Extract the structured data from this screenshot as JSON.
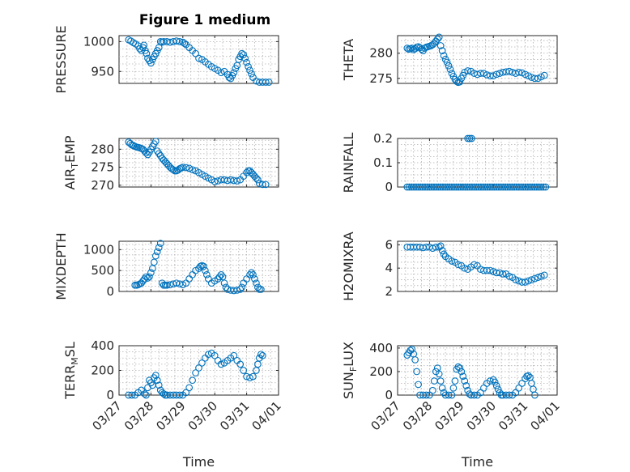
{
  "colors": {
    "marker": "#0072BD",
    "axes": "#262626",
    "grid": "#b0b0b0"
  },
  "chart_data": [
    {
      "type": "scatter",
      "title": "Figure 1 medium",
      "ylabel": "PRESSURE",
      "ylim": [
        930,
        1010
      ],
      "yticks": [
        950,
        1000
      ],
      "ytick_labels": [
        "950",
        "1000"
      ],
      "xlim": [
        0,
        5
      ],
      "xtick_labels": [
        "03/27",
        "03/28",
        "03/29",
        "03/30",
        "03/31",
        "04/01"
      ],
      "show_xticklabels": false,
      "xlabel": "",
      "grid": true,
      "x": [
        0.3,
        0.37,
        0.45,
        0.52,
        0.6,
        0.65,
        0.7,
        0.75,
        0.78,
        0.82,
        0.86,
        0.9,
        0.95,
        1.0,
        1.05,
        1.1,
        1.15,
        1.2,
        1.25,
        1.3,
        1.35,
        1.4,
        1.5,
        1.6,
        1.7,
        1.8,
        1.9,
        2.0,
        2.05,
        2.1,
        2.2,
        2.3,
        2.4,
        2.5,
        2.6,
        2.7,
        2.8,
        2.9,
        3.0,
        3.1,
        3.2,
        3.3,
        3.4,
        3.45,
        3.5,
        3.55,
        3.6,
        3.65,
        3.7,
        3.75,
        3.8,
        3.85,
        3.9,
        3.95,
        4.0,
        4.05,
        4.1,
        4.15,
        4.2,
        4.3,
        4.4,
        4.5,
        4.6,
        4.7
      ],
      "y": [
        1003,
        1001,
        998,
        996,
        993,
        988,
        985,
        990,
        994,
        985,
        980,
        972,
        968,
        964,
        970,
        975,
        980,
        985,
        990,
        1000,
        999,
        1000,
        1000,
        999,
        1000,
        1001,
        1000,
        999,
        997,
        995,
        990,
        985,
        980,
        972,
        970,
        966,
        962,
        958,
        955,
        952,
        948,
        950,
        945,
        940,
        938,
        943,
        948,
        955,
        960,
        970,
        975,
        980,
        978,
        972,
        965,
        958,
        952,
        946,
        940,
        934,
        932,
        932,
        932,
        932
      ]
    },
    {
      "type": "scatter",
      "title": "",
      "ylabel": "THETA",
      "ylim": [
        274,
        283.5
      ],
      "yticks": [
        275,
        280
      ],
      "ytick_labels": [
        "275",
        "280"
      ],
      "xlim": [
        0,
        5
      ],
      "xtick_labels": [
        "03/27",
        "03/28",
        "03/29",
        "03/30",
        "03/31",
        "04/01"
      ],
      "show_xticklabels": false,
      "xlabel": "",
      "grid": true,
      "x": [
        0.3,
        0.35,
        0.4,
        0.45,
        0.5,
        0.55,
        0.6,
        0.65,
        0.7,
        0.75,
        0.8,
        0.85,
        0.9,
        0.95,
        1.0,
        1.05,
        1.1,
        1.15,
        1.2,
        1.25,
        1.3,
        1.35,
        1.4,
        1.45,
        1.5,
        1.55,
        1.6,
        1.65,
        1.7,
        1.75,
        1.8,
        1.85,
        1.9,
        1.95,
        2.0,
        2.05,
        2.1,
        2.2,
        2.3,
        2.4,
        2.5,
        2.6,
        2.7,
        2.8,
        2.9,
        3.0,
        3.1,
        3.2,
        3.3,
        3.4,
        3.5,
        3.6,
        3.7,
        3.8,
        3.9,
        4.0,
        4.1,
        4.2,
        4.3,
        4.4,
        4.5,
        4.6
      ],
      "y": [
        281,
        280.8,
        280.9,
        281,
        280.7,
        280.9,
        281.2,
        281.3,
        281.1,
        280.8,
        280.5,
        281,
        281.2,
        281.3,
        281.4,
        281.5,
        281.7,
        282,
        282.4,
        282.8,
        283.2,
        281.5,
        280.5,
        279.5,
        278.8,
        278.2,
        277.5,
        276.8,
        276,
        275.4,
        274.8,
        274.4,
        274.2,
        274.3,
        275,
        275.6,
        276.2,
        276.5,
        276.4,
        276,
        275.8,
        276,
        276,
        275.7,
        275.5,
        275.5,
        275.8,
        276,
        276.2,
        276.3,
        276.4,
        276.2,
        276,
        276.2,
        276.1,
        275.8,
        275.5,
        275.2,
        275,
        275,
        275.3,
        275.6
      ]
    },
    {
      "type": "scatter",
      "title": "",
      "ylabel": "AIR_TEMP",
      "ylim": [
        269.5,
        283
      ],
      "yticks": [
        270,
        275,
        280
      ],
      "ytick_labels": [
        "270",
        "275",
        "280"
      ],
      "xlim": [
        0,
        5
      ],
      "xtick_labels": [
        "03/27",
        "03/28",
        "03/29",
        "03/30",
        "03/31",
        "04/01"
      ],
      "show_xticklabels": false,
      "xlabel": "",
      "grid": true,
      "x": [
        0.3,
        0.35,
        0.4,
        0.45,
        0.5,
        0.55,
        0.6,
        0.65,
        0.7,
        0.75,
        0.8,
        0.85,
        0.9,
        0.95,
        1.0,
        1.05,
        1.1,
        1.15,
        1.2,
        1.25,
        1.3,
        1.35,
        1.4,
        1.45,
        1.5,
        1.55,
        1.6,
        1.65,
        1.7,
        1.75,
        1.8,
        1.85,
        1.9,
        1.95,
        2.0,
        2.1,
        2.2,
        2.3,
        2.4,
        2.5,
        2.6,
        2.7,
        2.8,
        2.9,
        3.0,
        3.1,
        3.2,
        3.3,
        3.4,
        3.5,
        3.6,
        3.7,
        3.8,
        3.9,
        4.0,
        4.05,
        4.1,
        4.15,
        4.2,
        4.25,
        4.3,
        4.35,
        4.4,
        4.5,
        4.6
      ],
      "y": [
        282,
        281.6,
        281.2,
        281,
        280.8,
        280.6,
        280.5,
        280.4,
        280.2,
        280,
        279.5,
        279,
        278.5,
        279.2,
        280,
        280.8,
        281.5,
        282.2,
        279.5,
        278.8,
        278.2,
        277.5,
        277,
        276.5,
        276,
        275.5,
        275,
        274.6,
        274.3,
        274,
        274,
        274.2,
        274.6,
        274.8,
        275,
        274.9,
        274.7,
        274.3,
        274,
        273.5,
        273,
        272.5,
        272,
        271.5,
        271,
        271.2,
        271.5,
        271.5,
        271.3,
        271.5,
        271.3,
        271.2,
        271.5,
        272.5,
        273.5,
        274,
        274,
        273.5,
        273,
        272.5,
        272,
        271.5,
        270.5,
        270.2,
        270.2
      ]
    },
    {
      "type": "scatter",
      "title": "",
      "ylabel": "RAINFALL",
      "ylim": [
        0,
        0.2
      ],
      "yticks": [
        0,
        0.1,
        0.2
      ],
      "ytick_labels": [
        "0",
        "0.1",
        "0.2"
      ],
      "xlim": [
        0,
        5
      ],
      "xtick_labels": [
        "03/27",
        "03/28",
        "03/29",
        "03/30",
        "03/31",
        "04/01"
      ],
      "show_xticklabels": false,
      "xlabel": "",
      "grid": true,
      "x": [
        0.3,
        0.37,
        0.44,
        0.51,
        0.58,
        0.65,
        0.72,
        0.79,
        0.86,
        0.93,
        1.0,
        1.07,
        1.14,
        1.21,
        1.28,
        1.35,
        1.42,
        1.49,
        1.56,
        1.63,
        1.7,
        1.77,
        1.84,
        1.91,
        1.98,
        2.05,
        2.12,
        2.19,
        2.26,
        2.33,
        2.4,
        2.47,
        2.54,
        2.61,
        2.68,
        2.75,
        2.82,
        2.89,
        2.96,
        3.03,
        3.1,
        3.17,
        3.24,
        3.31,
        3.38,
        3.45,
        3.52,
        3.59,
        3.66,
        3.73,
        3.8,
        3.87,
        3.94,
        4.01,
        4.08,
        4.15,
        4.22,
        4.29,
        4.36,
        4.43,
        4.5,
        4.57,
        4.64,
        2.2,
        2.26,
        2.32
      ],
      "y": [
        0,
        0,
        0,
        0,
        0,
        0,
        0,
        0,
        0,
        0,
        0,
        0,
        0,
        0,
        0,
        0,
        0,
        0,
        0,
        0,
        0,
        0,
        0,
        0,
        0,
        0,
        0,
        0,
        0,
        0,
        0,
        0,
        0,
        0,
        0,
        0,
        0,
        0,
        0,
        0,
        0,
        0,
        0,
        0,
        0,
        0,
        0,
        0,
        0,
        0,
        0,
        0,
        0,
        0,
        0,
        0,
        0,
        0,
        0,
        0,
        0,
        0,
        0,
        0.2,
        0.2,
        0.2
      ]
    },
    {
      "type": "scatter",
      "title": "",
      "ylabel": "MIXDEPTH",
      "ylim": [
        0,
        1200
      ],
      "yticks": [
        0,
        500,
        1000
      ],
      "ytick_labels": [
        "0",
        "500",
        "1000"
      ],
      "xlim": [
        0,
        5
      ],
      "xtick_labels": [
        "03/27",
        "03/28",
        "03/29",
        "03/30",
        "03/31",
        "04/01"
      ],
      "show_xticklabels": false,
      "xlabel": "",
      "grid": true,
      "x": [
        0.5,
        0.55,
        0.6,
        0.65,
        0.7,
        0.75,
        0.8,
        0.85,
        0.9,
        0.95,
        1.0,
        1.05,
        1.1,
        1.15,
        1.2,
        1.25,
        1.3,
        1.35,
        1.4,
        1.45,
        1.5,
        1.6,
        1.7,
        1.8,
        1.9,
        2.0,
        2.1,
        2.2,
        2.3,
        2.4,
        2.5,
        2.55,
        2.6,
        2.65,
        2.7,
        2.75,
        2.8,
        2.9,
        3.0,
        3.1,
        3.15,
        3.2,
        3.25,
        3.3,
        3.35,
        3.4,
        3.5,
        3.6,
        3.7,
        3.8,
        3.85,
        3.9,
        4.0,
        4.1,
        4.15,
        4.2,
        4.25,
        4.3,
        4.35,
        4.4,
        4.45
      ],
      "y": [
        150,
        150,
        160,
        180,
        200,
        250,
        300,
        350,
        320,
        350,
        450,
        550,
        700,
        850,
        950,
        1050,
        1150,
        200,
        150,
        150,
        150,
        160,
        180,
        200,
        180,
        160,
        200,
        300,
        400,
        500,
        550,
        600,
        620,
        600,
        500,
        400,
        300,
        200,
        250,
        300,
        350,
        400,
        350,
        200,
        100,
        50,
        30,
        20,
        30,
        50,
        100,
        200,
        300,
        400,
        450,
        400,
        300,
        200,
        100,
        50,
        50
      ]
    },
    {
      "type": "scatter",
      "title": "",
      "ylabel": "H2OMIXRA",
      "ylim": [
        2,
        6.3
      ],
      "yticks": [
        2,
        4,
        6
      ],
      "ytick_labels": [
        "2",
        "4",
        "6"
      ],
      "xlim": [
        0,
        5
      ],
      "xtick_labels": [
        "03/27",
        "03/28",
        "03/29",
        "03/30",
        "03/31",
        "04/01"
      ],
      "show_xticklabels": false,
      "xlabel": "",
      "grid": true,
      "x": [
        0.3,
        0.4,
        0.5,
        0.6,
        0.7,
        0.8,
        0.9,
        1.0,
        1.1,
        1.2,
        1.3,
        1.35,
        1.4,
        1.45,
        1.5,
        1.6,
        1.7,
        1.8,
        1.9,
        2.0,
        2.1,
        2.2,
        2.3,
        2.4,
        2.5,
        2.6,
        2.7,
        2.8,
        2.9,
        3.0,
        3.1,
        3.2,
        3.3,
        3.4,
        3.5,
        3.6,
        3.7,
        3.8,
        3.9,
        4.0,
        4.1,
        4.2,
        4.3,
        4.4,
        4.5,
        4.6
      ],
      "y": [
        5.8,
        5.8,
        5.8,
        5.8,
        5.8,
        5.75,
        5.8,
        5.8,
        5.7,
        5.8,
        5.8,
        5.9,
        5.5,
        5.2,
        5.0,
        4.8,
        4.6,
        4.5,
        4.3,
        4.2,
        4.0,
        3.9,
        4.1,
        4.3,
        4.2,
        3.9,
        3.8,
        3.8,
        3.8,
        3.7,
        3.6,
        3.6,
        3.5,
        3.5,
        3.3,
        3.2,
        3.0,
        2.9,
        2.8,
        2.8,
        2.9,
        3.0,
        3.1,
        3.2,
        3.3,
        3.4
      ]
    },
    {
      "type": "scatter",
      "title": "",
      "ylabel": "TERR_MSL",
      "ylim": [
        0,
        400
      ],
      "yticks": [
        0,
        200,
        400
      ],
      "ytick_labels": [
        "0",
        "200",
        "400"
      ],
      "xlim": [
        0,
        5
      ],
      "xtick_labels": [
        "03/27",
        "03/28",
        "03/29",
        "03/30",
        "03/31",
        "04/01"
      ],
      "show_xticklabels": true,
      "xlabel": "Time",
      "grid": true,
      "x": [
        0.3,
        0.4,
        0.5,
        0.6,
        0.7,
        0.8,
        0.85,
        0.9,
        0.95,
        1.0,
        1.05,
        1.1,
        1.15,
        1.2,
        1.25,
        1.3,
        1.35,
        1.4,
        1.45,
        1.5,
        1.6,
        1.7,
        1.8,
        1.9,
        2.0,
        2.1,
        2.2,
        2.3,
        2.4,
        2.5,
        2.6,
        2.7,
        2.8,
        2.9,
        3.0,
        3.1,
        3.2,
        3.3,
        3.4,
        3.5,
        3.6,
        3.7,
        3.8,
        3.9,
        4.0,
        4.1,
        4.2,
        4.3,
        4.35,
        4.4,
        4.45,
        4.5
      ],
      "y": [
        0,
        0,
        0,
        20,
        40,
        10,
        0,
        60,
        120,
        100,
        80,
        140,
        160,
        120,
        80,
        40,
        20,
        10,
        0,
        0,
        0,
        0,
        0,
        0,
        0,
        20,
        60,
        120,
        180,
        220,
        260,
        300,
        330,
        340,
        320,
        280,
        250,
        260,
        280,
        300,
        320,
        280,
        250,
        200,
        150,
        140,
        150,
        200,
        250,
        300,
        330,
        320
      ]
    },
    {
      "type": "scatter",
      "title": "",
      "ylabel": "SUN_FLUX",
      "ylim": [
        0,
        420
      ],
      "yticks": [
        0,
        200,
        400
      ],
      "ytick_labels": [
        "0",
        "200",
        "400"
      ],
      "xlim": [
        0,
        5
      ],
      "xtick_labels": [
        "03/27",
        "03/28",
        "03/29",
        "03/30",
        "03/31",
        "04/01"
      ],
      "show_xticklabels": true,
      "xlabel": "Time",
      "grid": true,
      "x": [
        0.3,
        0.35,
        0.4,
        0.45,
        0.5,
        0.55,
        0.6,
        0.65,
        0.7,
        0.8,
        0.9,
        1.0,
        1.1,
        1.15,
        1.2,
        1.25,
        1.3,
        1.35,
        1.4,
        1.45,
        1.5,
        1.6,
        1.7,
        1.75,
        1.8,
        1.85,
        1.9,
        1.95,
        2.0,
        2.05,
        2.1,
        2.15,
        2.2,
        2.25,
        2.3,
        2.4,
        2.5,
        2.6,
        2.7,
        2.8,
        2.9,
        3.0,
        3.05,
        3.1,
        3.15,
        3.2,
        3.25,
        3.3,
        3.4,
        3.5,
        3.6,
        3.7,
        3.8,
        3.9,
        4.0,
        4.05,
        4.1,
        4.15,
        4.2,
        4.25,
        4.3
      ],
      "y": [
        340,
        360,
        380,
        390,
        350,
        300,
        200,
        90,
        0,
        0,
        0,
        0,
        40,
        120,
        200,
        230,
        180,
        120,
        60,
        20,
        0,
        0,
        0,
        60,
        120,
        220,
        240,
        230,
        200,
        160,
        120,
        80,
        40,
        10,
        0,
        0,
        0,
        20,
        60,
        100,
        120,
        130,
        110,
        80,
        50,
        20,
        0,
        0,
        0,
        0,
        0,
        20,
        60,
        100,
        140,
        160,
        165,
        150,
        100,
        50,
        0
      ]
    }
  ]
}
